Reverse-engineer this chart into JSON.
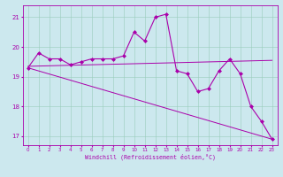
{
  "xlabel": "Windchill (Refroidissement éolien,°C)",
  "bg_color": "#cce8ee",
  "grid_color": "#99ccbb",
  "line_color": "#aa00aa",
  "xlim": [
    -0.5,
    23.5
  ],
  "ylim": [
    16.7,
    21.4
  ],
  "yticks": [
    17,
    18,
    19,
    20,
    21
  ],
  "xticks": [
    0,
    1,
    2,
    3,
    4,
    5,
    6,
    7,
    8,
    9,
    10,
    11,
    12,
    13,
    14,
    15,
    16,
    17,
    18,
    19,
    20,
    21,
    22,
    23
  ],
  "y_main": [
    19.3,
    19.8,
    19.6,
    19.6,
    19.4,
    19.5,
    19.6,
    19.6,
    19.6,
    19.7,
    20.5,
    20.2,
    21.0,
    21.1,
    19.2,
    19.1,
    18.5,
    18.6,
    19.2,
    19.6,
    19.1,
    18.0,
    17.5,
    16.9
  ],
  "line_horiz": {
    "x": [
      0,
      23
    ],
    "y": [
      19.35,
      19.55
    ]
  },
  "line_diag": {
    "x": [
      0,
      23
    ],
    "y": [
      19.3,
      16.9
    ]
  }
}
